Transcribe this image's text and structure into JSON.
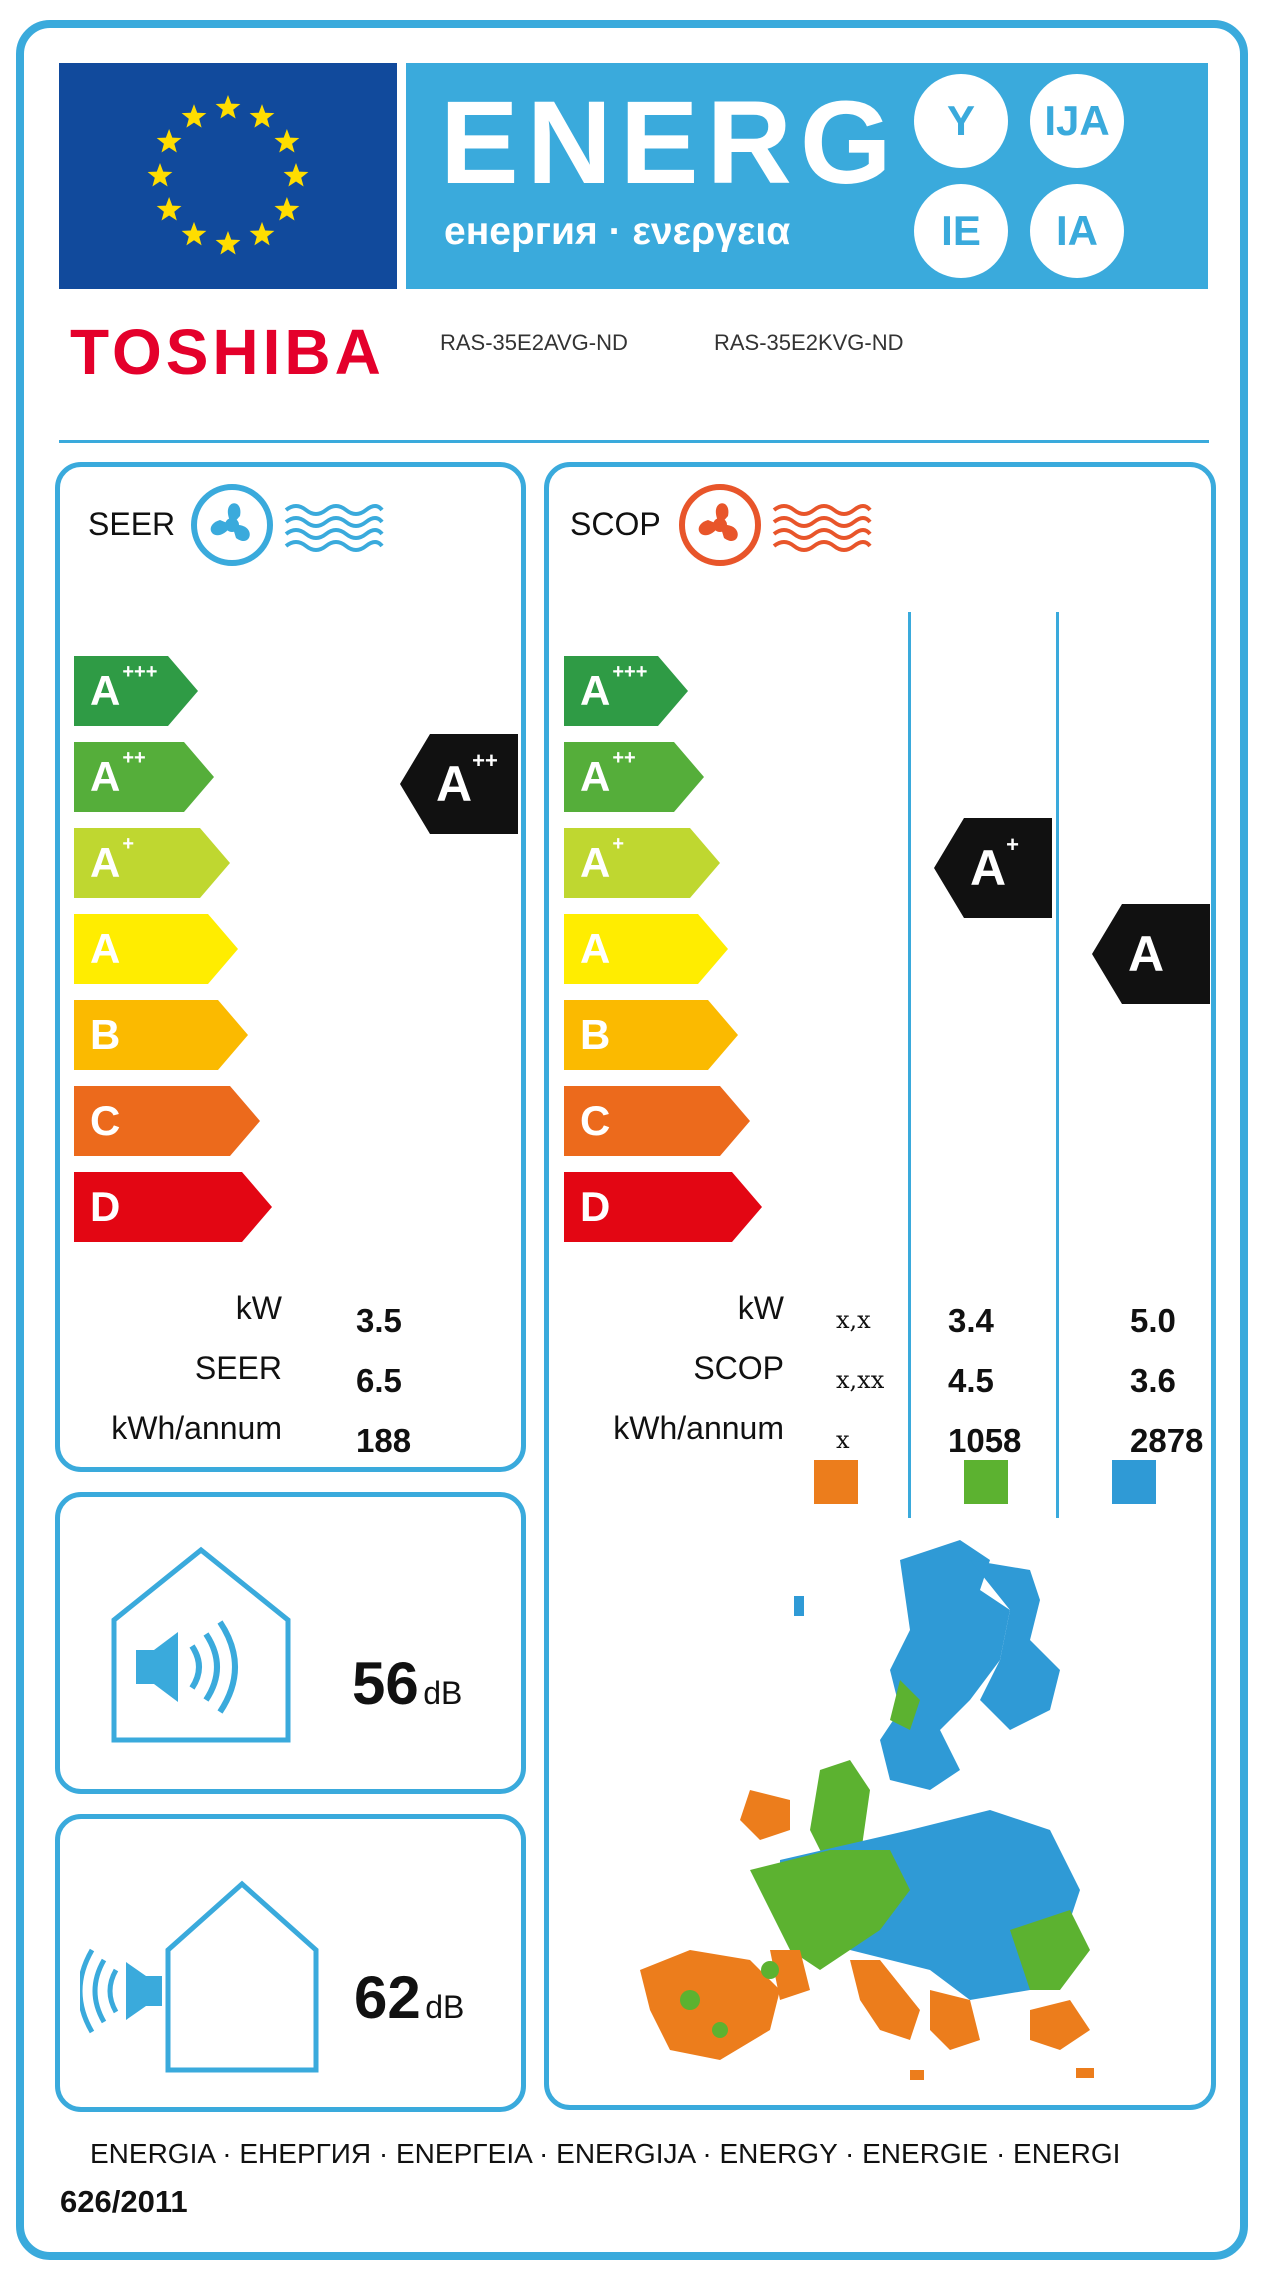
{
  "header": {
    "title": "ENERG",
    "subtitle": "енергия · ενεργεια",
    "suffixes": [
      "Y",
      "IJA",
      "IE",
      "IA"
    ]
  },
  "brand": "TOSHIBA",
  "models": [
    "RAS-35E2AVG-ND",
    "RAS-35E2KVG-ND"
  ],
  "colors": {
    "frame": "#3aaadc",
    "eu_blue": "#114a9c",
    "eu_star": "#ffdd00",
    "brand_red": "#e4002b",
    "cool_icon": "#3aaadc",
    "heat_icon": "#e8552a"
  },
  "scale": [
    {
      "letter": "A",
      "sup": "+++",
      "color": "#2f9b45"
    },
    {
      "letter": "A",
      "sup": "++",
      "color": "#55ae3a"
    },
    {
      "letter": "A",
      "sup": "+",
      "color": "#bfd730"
    },
    {
      "letter": "A",
      "sup": "",
      "color": "#ffed00"
    },
    {
      "letter": "B",
      "sup": "",
      "color": "#fbba00"
    },
    {
      "letter": "C",
      "sup": "",
      "color": "#ec6a1c"
    },
    {
      "letter": "D",
      "sup": "",
      "color": "#e30613"
    }
  ],
  "seer_panel": {
    "title": "SEER",
    "icon": "cooling-fan-icon",
    "rating": {
      "letter": "A",
      "sup": "++"
    },
    "labels": [
      "kW",
      "SEER",
      "kWh/annum"
    ],
    "values": [
      "3.5",
      "6.5",
      "188"
    ]
  },
  "scop_panel": {
    "title": "SCOP",
    "icon": "heating-fan-icon",
    "labels": [
      "kW",
      "SCOP",
      "kWh/annum"
    ],
    "zones": [
      {
        "name": "warmer",
        "color": "#ec7d1c",
        "values": [
          "x,x",
          "x,xx",
          "x"
        ],
        "rating": null
      },
      {
        "name": "average",
        "color": "#5cb230",
        "values": [
          "3.4",
          "4.5",
          "1058"
        ],
        "rating": {
          "letter": "A",
          "sup": "+"
        }
      },
      {
        "name": "colder",
        "color": "#2f9ad6",
        "values": [
          "5.0",
          "3.6",
          "2878"
        ],
        "rating": {
          "letter": "A",
          "sup": ""
        }
      }
    ]
  },
  "noise": {
    "indoor": {
      "value": "56",
      "unit": "dB",
      "icon": "indoor-sound-icon"
    },
    "outdoor": {
      "value": "62",
      "unit": "dB",
      "icon": "outdoor-sound-icon"
    }
  },
  "footer": {
    "languages": "ENERGIA · ЕНЕРГИЯ · ΕΝΕΡΓΕΙΑ · ENERGIJA · ENERGY · ENERGIE · ENERGI",
    "regulation": "626/2011"
  }
}
